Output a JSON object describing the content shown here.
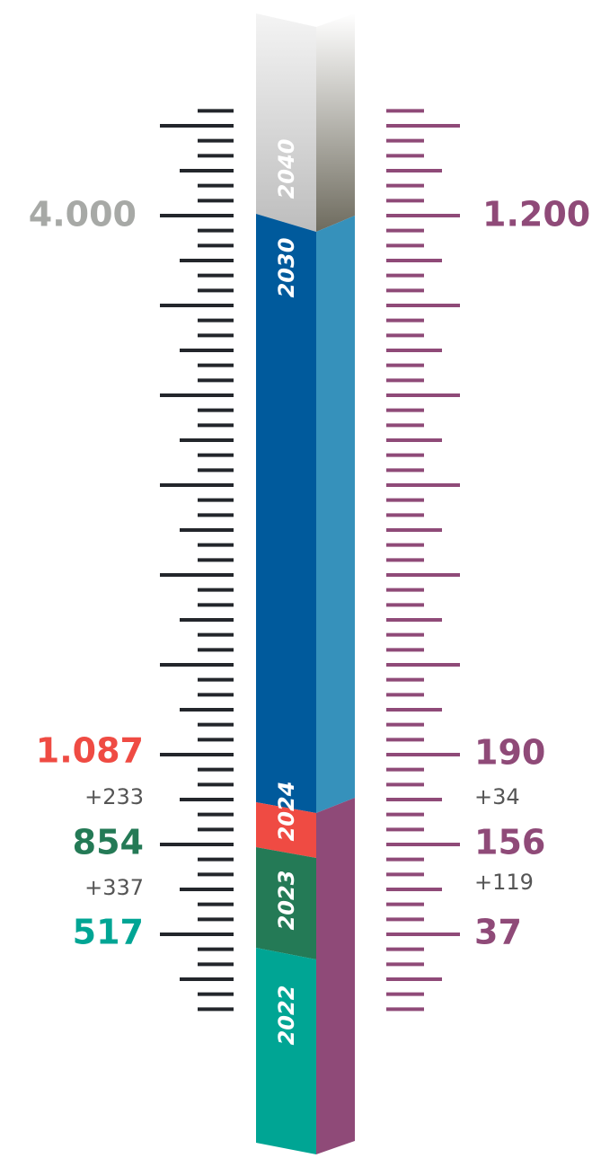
{
  "left": {
    "total": "4.000",
    "marks": [
      {
        "value": "1.087",
        "delta": "+233"
      },
      {
        "value": "854",
        "delta": "+337"
      },
      {
        "value": "517"
      }
    ]
  },
  "right": {
    "total": "1.200",
    "marks": [
      {
        "value": "190",
        "delta": "+34"
      },
      {
        "value": "156",
        "delta": "+119"
      },
      {
        "value": "37"
      }
    ]
  },
  "years": [
    "2040",
    "2030",
    "2024",
    "2023",
    "2022"
  ]
}
